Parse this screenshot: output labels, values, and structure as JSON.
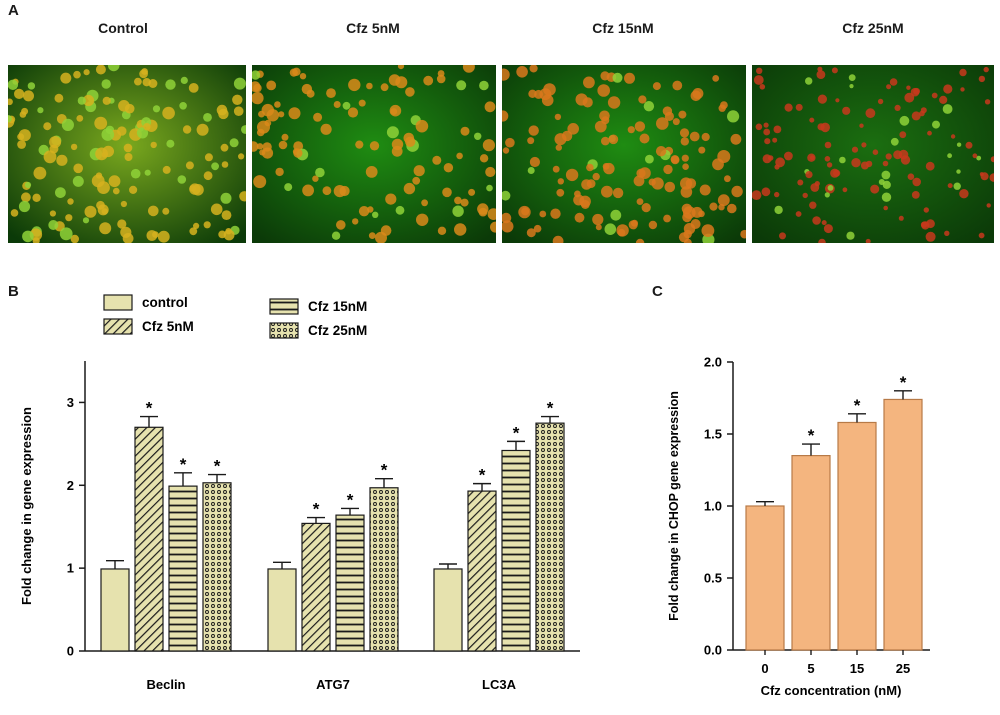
{
  "panel_a": {
    "letter": "A",
    "images": [
      {
        "label": "Control",
        "tint": "#7aa81e",
        "dot_color": "#d6b21e"
      },
      {
        "label": "Cfz 5nM",
        "tint": "#1f8c12",
        "dot_color": "#d98a1a"
      },
      {
        "label": "Cfz 15nM",
        "tint": "#1f8c12",
        "dot_color": "#d9781c"
      },
      {
        "label": "Cfz 25nM",
        "tint": "#1b6e10",
        "dot_color": "#c8381c"
      }
    ]
  },
  "colors": {
    "bar_fill_b": "#e6e2ae",
    "bar_stroke": "#1a1a1a",
    "bar_fill_c": "#f4b57f",
    "bar_stroke_c": "#b77a47"
  },
  "chart_data": [
    {
      "type": "bar",
      "panel": "B",
      "categories": [
        "Beclin",
        "ATG7",
        "LC3A"
      ],
      "ylabel": "Fold change in gene expression",
      "ylim": [
        0,
        3.5
      ],
      "yticks": [
        0,
        1,
        2,
        3
      ],
      "legend_position": "top",
      "series": [
        {
          "name": "control",
          "pattern": "plain",
          "values": [
            0.99,
            0.99,
            0.99
          ],
          "errors": [
            0.1,
            0.08,
            0.06
          ],
          "significant": [
            false,
            false,
            false
          ]
        },
        {
          "name": "Cfz 5nM",
          "pattern": "diagonal",
          "values": [
            2.7,
            1.54,
            1.93
          ],
          "errors": [
            0.13,
            0.07,
            0.09
          ],
          "significant": [
            true,
            true,
            true
          ]
        },
        {
          "name": "Cfz 15nM",
          "pattern": "horizontal",
          "values": [
            1.99,
            1.64,
            2.42
          ],
          "errors": [
            0.16,
            0.08,
            0.11
          ],
          "significant": [
            true,
            true,
            true
          ]
        },
        {
          "name": "Cfz 25nM",
          "pattern": "dots",
          "values": [
            2.03,
            1.97,
            2.75
          ],
          "errors": [
            0.1,
            0.11,
            0.08
          ],
          "significant": [
            true,
            true,
            true
          ]
        }
      ],
      "significance_marker": "*"
    },
    {
      "type": "bar",
      "panel": "C",
      "categories": [
        "0",
        "5",
        "15",
        "25"
      ],
      "xlabel": "Cfz concentration (nM)",
      "ylabel": "Fold change in CHOP gene expression",
      "ylim": [
        0,
        2.0
      ],
      "yticks": [
        "0.0",
        "0.5",
        "1.0",
        "1.5",
        "2.0"
      ],
      "values": [
        1.0,
        1.35,
        1.58,
        1.74
      ],
      "errors": [
        0.03,
        0.08,
        0.06,
        0.06
      ],
      "significant": [
        false,
        true,
        true,
        true
      ],
      "significance_marker": "*"
    }
  ]
}
